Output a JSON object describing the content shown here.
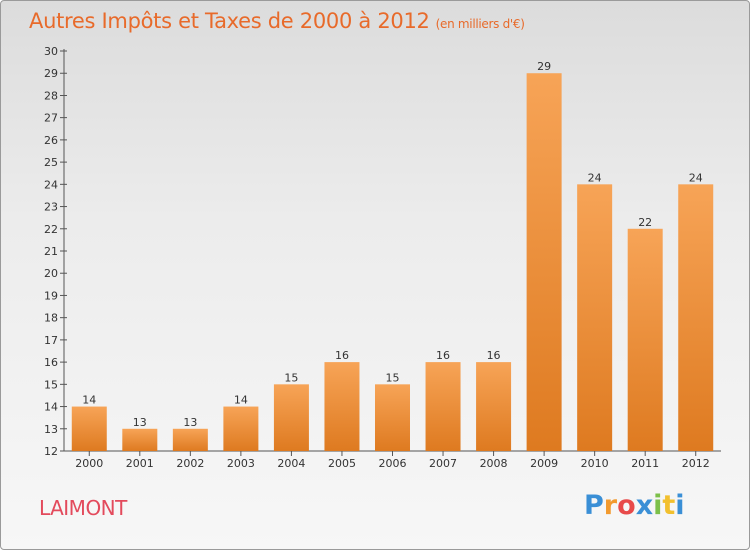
{
  "title": "Autres Impôts et Taxes de 2000 à 2012",
  "unit_note": "(en milliers d'€)",
  "commune": "LAIMONT",
  "logo": {
    "text": "Proxiti",
    "letters": [
      "P",
      "r",
      "o",
      "x",
      "i",
      "t",
      "i"
    ],
    "colors": [
      "#3a8fd6",
      "#f29a2e",
      "#e84a4a",
      "#3a8fd6",
      "#7cc04a",
      "#f2c02e",
      "#3a8fd6"
    ]
  },
  "colors": {
    "title": "#e86a2a",
    "commune": "#e34a5c",
    "bar_top": "#f7a457",
    "bar_bottom": "#de7a20"
  },
  "chart_data": {
    "type": "bar",
    "categories": [
      "2000",
      "2001",
      "2002",
      "2003",
      "2004",
      "2005",
      "2006",
      "2007",
      "2008",
      "2009",
      "2010",
      "2011",
      "2012"
    ],
    "values": [
      14,
      13,
      13,
      14,
      15,
      16,
      15,
      16,
      16,
      29,
      24,
      22,
      24
    ],
    "ylim": [
      12,
      30
    ],
    "yticks": [
      12,
      13,
      14,
      15,
      16,
      17,
      18,
      19,
      20,
      21,
      22,
      23,
      24,
      25,
      26,
      27,
      28,
      29,
      30
    ],
    "grid": false
  }
}
